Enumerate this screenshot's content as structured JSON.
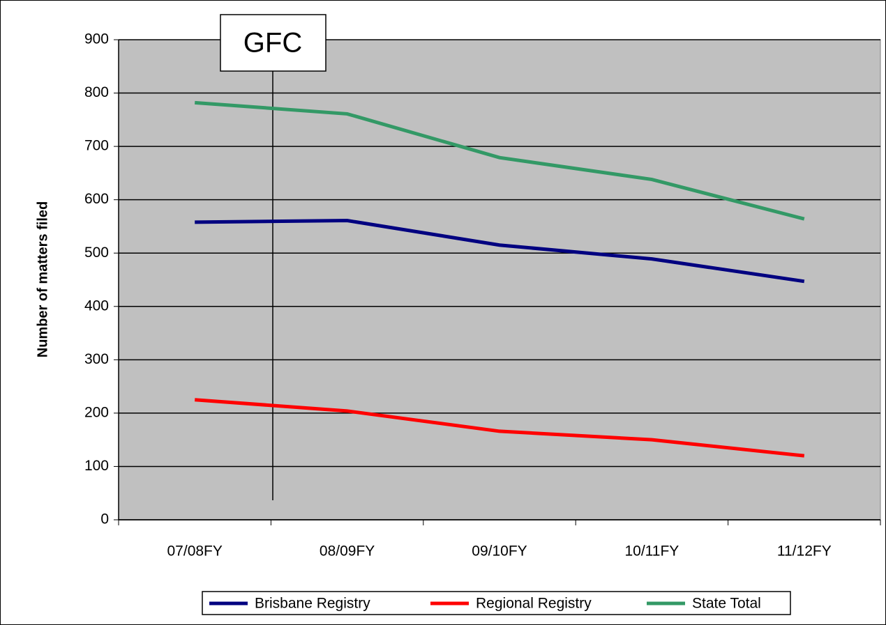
{
  "chart_data": {
    "type": "line",
    "y_label": "Number of matters filed",
    "categories": [
      "07/08FY",
      "08/09FY",
      "09/10FY",
      "10/11FY",
      "11/12FY"
    ],
    "series": [
      {
        "name": "Brisbane Registry",
        "color": "#000080",
        "values": [
          558,
          561,
          515,
          489,
          447
        ]
      },
      {
        "name": "Regional Registry",
        "color": "#ff0000",
        "values": [
          225,
          204,
          166,
          150,
          120
        ]
      },
      {
        "name": "State Total",
        "color": "#339966",
        "values": [
          782,
          761,
          679,
          638,
          564
        ]
      }
    ],
    "ylim": [
      0,
      900
    ],
    "yticks": [
      0,
      100,
      200,
      300,
      400,
      500,
      600,
      700,
      800,
      900
    ],
    "grid": true,
    "legend": "bottom",
    "annotation": "GFC"
  }
}
